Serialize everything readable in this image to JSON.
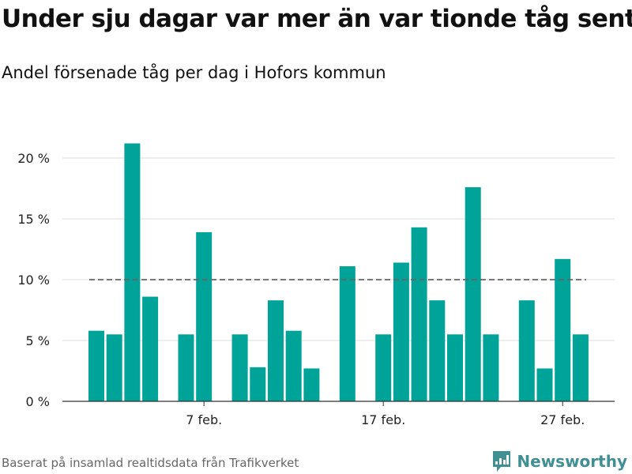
{
  "title": "Under sju dagar var mer än var tionde tåg sent",
  "subtitle": "Andel försenade tåg per dag i Hofors kommun",
  "source": "Baserat på insamlad realtidsdata från Trafikverket",
  "brand": {
    "name": "Newsworthy",
    "icon": "newsworthy-logo-icon",
    "color": "#3f8f93"
  },
  "chart_data": {
    "type": "bar",
    "title": "Under sju dagar var mer än var tionde tåg sent",
    "subtitle": "Andel försenade tåg per dag i Hofors kommun",
    "xlabel": "",
    "ylabel": "",
    "x_ticks": [
      "7 feb.",
      "17 feb.",
      "27 feb."
    ],
    "y_ticks": [
      "0 %",
      "5 %",
      "10 %",
      "15 %",
      "20 %"
    ],
    "ylim": [
      0,
      20
    ],
    "grid": true,
    "bar_color": "#00a398",
    "reference_line": {
      "value": 10,
      "style": "dashed",
      "color": "#666666"
    },
    "x": [
      "1 feb.",
      "2 feb.",
      "3 feb.",
      "4 feb.",
      "5 feb.",
      "6 feb.",
      "7 feb.",
      "8 feb.",
      "9 feb.",
      "10 feb.",
      "11 feb.",
      "12 feb.",
      "13 feb.",
      "14 feb.",
      "15 feb.",
      "16 feb.",
      "17 feb.",
      "18 feb.",
      "19 feb.",
      "20 feb.",
      "21 feb.",
      "22 feb.",
      "23 feb.",
      "24 feb.",
      "25 feb.",
      "26 feb.",
      "27 feb.",
      "28 feb.",
      "29 feb."
    ],
    "values": [
      5.8,
      5.5,
      21.2,
      8.6,
      null,
      5.5,
      13.9,
      null,
      5.5,
      2.8,
      8.3,
      5.8,
      2.7,
      null,
      11.1,
      null,
      5.5,
      11.4,
      14.3,
      8.3,
      5.5,
      17.6,
      5.5,
      null,
      8.3,
      2.7,
      11.7,
      5.5,
      null
    ]
  }
}
